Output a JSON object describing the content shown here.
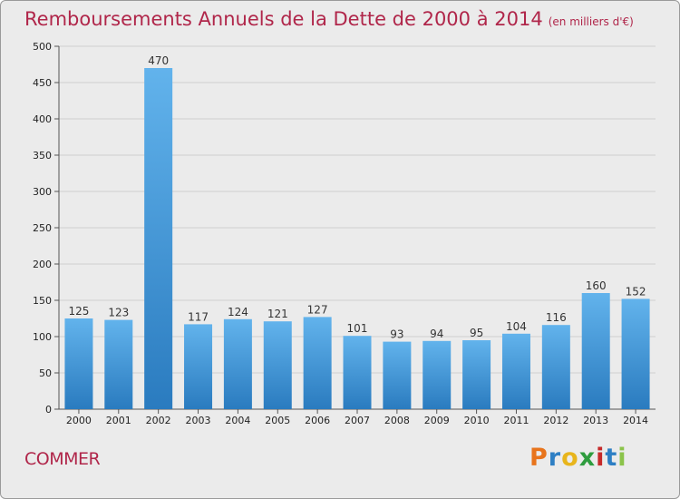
{
  "header": {
    "title": "Remboursements Annuels de la Dette de 2000 à 2014",
    "unit": "(en milliers d'€)"
  },
  "footer": {
    "commune": "COMMER",
    "brand": "Proxiti",
    "brand_colors": [
      "#e8741c",
      "#2e7fc4",
      "#e8b51c",
      "#2e9c3e",
      "#c62a2a",
      "#2e7fc4",
      "#8bc34a"
    ]
  },
  "colors": {
    "title": "#b0264a",
    "bar_top": "#62b3ec",
    "bar_bottom": "#2a7bbf",
    "grid": "#cfcfcf"
  },
  "chart_data": {
    "type": "bar",
    "title": "Remboursements Annuels de la Dette de 2000 à 2014",
    "subtitle": "(en milliers d'€)",
    "xlabel": "",
    "ylabel": "",
    "ylim": [
      0,
      500
    ],
    "yticks": [
      0,
      50,
      100,
      150,
      200,
      250,
      300,
      350,
      400,
      450,
      500
    ],
    "grid": true,
    "categories": [
      "2000",
      "2001",
      "2002",
      "2003",
      "2004",
      "2005",
      "2006",
      "2007",
      "2008",
      "2009",
      "2010",
      "2011",
      "2012",
      "2013",
      "2014"
    ],
    "values": [
      125,
      123,
      470,
      117,
      124,
      121,
      127,
      101,
      93,
      94,
      95,
      104,
      116,
      160,
      152
    ]
  }
}
